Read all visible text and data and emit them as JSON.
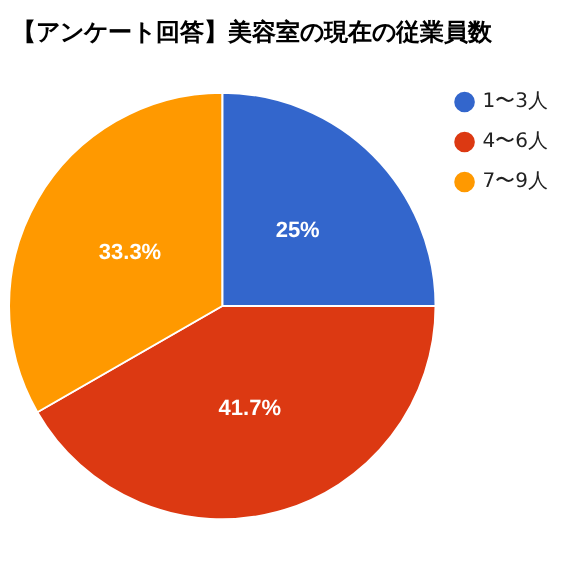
{
  "chart_data": {
    "type": "pie",
    "title": "【アンケート回答】美容室の現在の従業員数",
    "categories": [
      "1〜3人",
      "4〜6人",
      "7〜9人"
    ],
    "values": [
      25,
      41.7,
      33.3
    ],
    "value_labels": [
      "25%",
      "41.7%",
      "33.3%"
    ],
    "colors": [
      "#3366cc",
      "#dc3912",
      "#ff9900"
    ],
    "legend": "top right"
  }
}
